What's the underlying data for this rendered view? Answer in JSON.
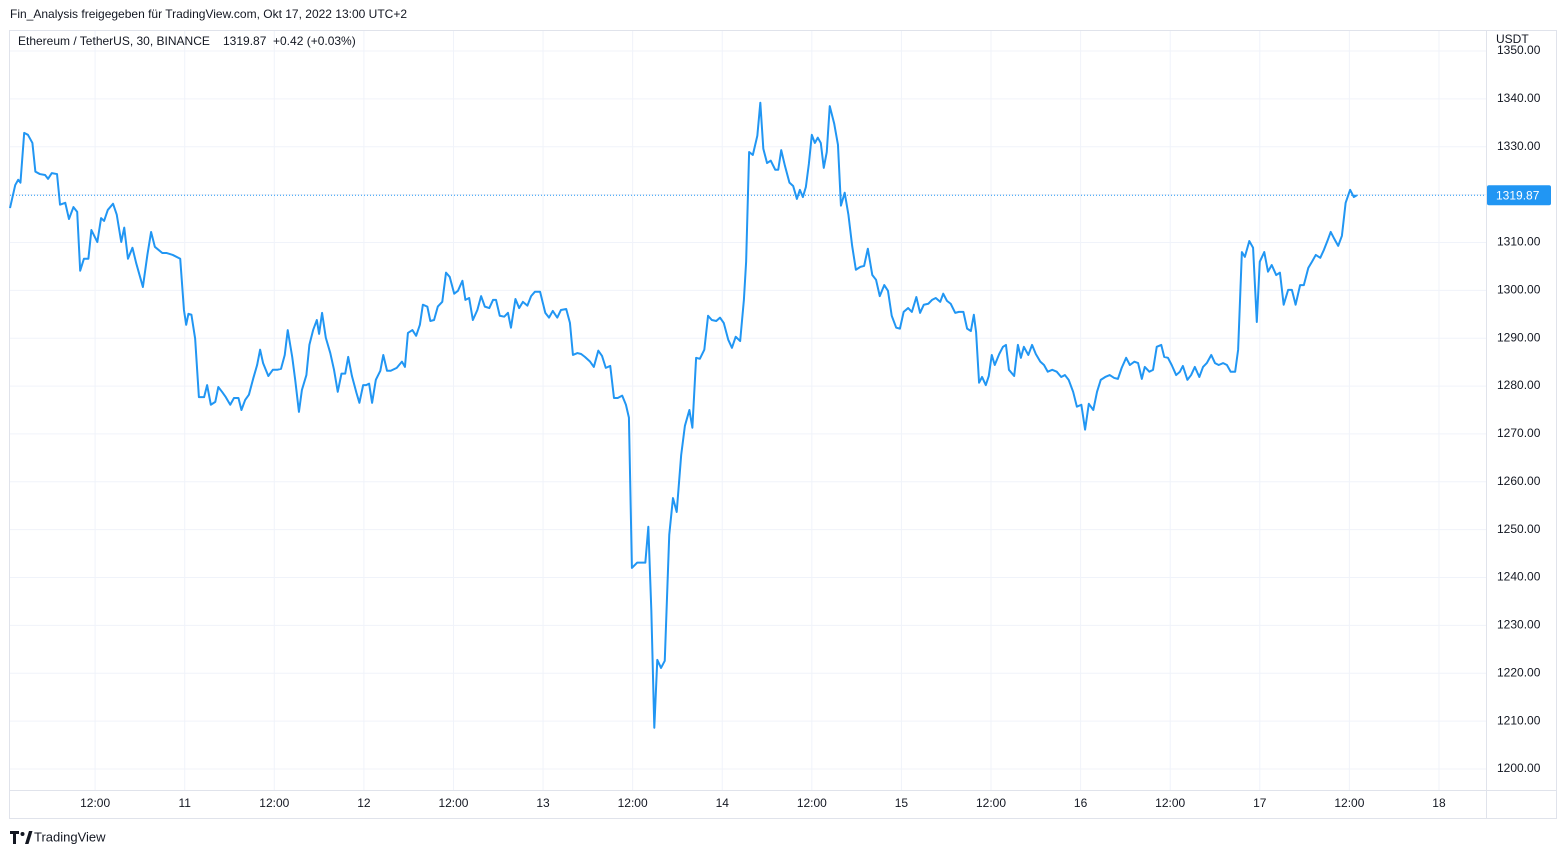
{
  "header": {
    "share_note": "Fin_Analysis freigegeben für TradingView.com, Okt 17, 2022 13:00 UTC+2"
  },
  "footer": {
    "brand": "TradingView"
  },
  "chart_data": {
    "type": "line",
    "title": "Ethereum / TetherUS, 30, BINANCE",
    "last_value": 1319.87,
    "change": "+0.42 (+0.03%)",
    "y_unit": "USDT",
    "color": "#2196f3",
    "grid": true,
    "xlim": [
      0.6,
      198.3
    ],
    "xticks": [
      {
        "value": 12,
        "label": "12:00"
      },
      {
        "value": 24,
        "label": "11"
      },
      {
        "value": 36,
        "label": "12:00"
      },
      {
        "value": 48,
        "label": "12"
      },
      {
        "value": 60,
        "label": "12:00"
      },
      {
        "value": 72,
        "label": "13"
      },
      {
        "value": 84,
        "label": "12:00"
      },
      {
        "value": 96,
        "label": "14"
      },
      {
        "value": 108,
        "label": "12:00"
      },
      {
        "value": 120,
        "label": "15"
      },
      {
        "value": 132,
        "label": "12:00"
      },
      {
        "value": 144,
        "label": "16"
      },
      {
        "value": 156,
        "label": "12:00"
      },
      {
        "value": 168,
        "label": "17"
      },
      {
        "value": 180,
        "label": "12:00"
      },
      {
        "value": 192,
        "label": "18"
      }
    ],
    "ylim": [
      1195.6,
      1354.4
    ],
    "yticks": [
      {
        "value": 1200,
        "label": "1200.00"
      },
      {
        "value": 1210,
        "label": "1210.00"
      },
      {
        "value": 1220,
        "label": "1220.00"
      },
      {
        "value": 1230,
        "label": "1230.00"
      },
      {
        "value": 1240,
        "label": "1240.00"
      },
      {
        "value": 1250,
        "label": "1250.00"
      },
      {
        "value": 1260,
        "label": "1260.00"
      },
      {
        "value": 1270,
        "label": "1270.00"
      },
      {
        "value": 1280,
        "label": "1280.00"
      },
      {
        "value": 1290,
        "label": "1290.00"
      },
      {
        "value": 1300,
        "label": "1300.00"
      },
      {
        "value": 1310,
        "label": "1310.00"
      },
      {
        "value": 1320,
        "label": "1320.00"
      },
      {
        "value": 1330,
        "label": "1330.00"
      },
      {
        "value": 1340,
        "label": "1340.00"
      },
      {
        "value": 1350,
        "label": "1350.00"
      }
    ],
    "x": [
      0.6,
      1.3,
      1.7,
      2.0,
      2.5,
      3.0,
      3.6,
      4.0,
      4.6,
      5.3,
      5.7,
      6.2,
      6.9,
      7.3,
      8.0,
      8.5,
      9.1,
      9.6,
      10.0,
      10.5,
      11.1,
      11.5,
      12.3,
      12.8,
      13.2,
      13.7,
      14.4,
      14.9,
      15.5,
      15.9,
      16.4,
      17.0,
      17.5,
      18.4,
      19.0,
      19.5,
      20.0,
      21.0,
      21.6,
      22.4,
      23.4,
      23.9,
      24.2,
      24.5,
      24.9,
      25.4,
      25.9,
      26.6,
      27.0,
      27.5,
      28.1,
      28.5,
      29.0,
      29.5,
      30.1,
      30.6,
      31.2,
      31.6,
      32.1,
      32.6,
      33.2,
      33.7,
      34.1,
      34.5,
      35.2,
      35.8,
      36.4,
      36.9,
      37.4,
      37.8,
      38.4,
      38.8,
      39.3,
      39.7,
      40.3,
      40.7,
      41.2,
      41.7,
      42.0,
      42.4,
      42.9,
      43.5,
      44.0,
      44.5,
      45.0,
      45.5,
      45.9,
      46.4,
      47.0,
      47.4,
      47.9,
      48.3,
      48.7,
      49.1,
      49.6,
      50.2,
      50.6,
      51.1,
      51.6,
      52.4,
      53.1,
      53.5,
      53.9,
      54.5,
      55.0,
      55.5,
      55.9,
      56.5,
      56.9,
      57.4,
      57.9,
      58.5,
      59.0,
      59.5,
      60.1,
      60.6,
      61.2,
      61.6,
      62.1,
      62.6,
      63.2,
      63.7,
      64.2,
      64.8,
      65.3,
      65.7,
      66.2,
      66.8,
      67.3,
      67.7,
      68.3,
      68.8,
      69.3,
      69.9,
      70.4,
      70.9,
      71.6,
      72.3,
      72.8,
      73.3,
      73.9,
      74.4,
      75.1,
      75.6,
      76.0,
      76.6,
      77.1,
      77.6,
      78.3,
      78.8,
      79.4,
      79.9,
      80.4,
      81.0,
      81.5,
      82.0,
      82.6,
      83.1,
      83.5,
      83.9,
      84.6,
      85.1,
      85.7,
      86.1,
      86.5,
      86.9,
      87.3,
      87.8,
      88.3,
      88.9,
      89.4,
      89.9,
      90.5,
      91.0,
      91.6,
      92.0,
      92.5,
      93.0,
      93.6,
      94.1,
      94.6,
      95.2,
      95.7,
      96.2,
      96.8,
      97.3,
      97.8,
      98.4,
      98.9,
      99.2,
      99.6,
      100.1,
      100.7,
      101.1,
      101.5,
      102.0,
      102.5,
      103.1,
      103.5,
      103.9,
      104.4,
      105.0,
      105.5,
      106.0,
      106.4,
      106.8,
      107.2,
      107.6,
      108.0,
      108.4,
      108.8,
      109.2,
      109.6,
      110.0,
      110.4,
      111.0,
      111.5,
      111.9,
      112.4,
      112.9,
      113.4,
      113.9,
      114.5,
      115.0,
      115.5,
      116.1,
      116.6,
      117.1,
      117.7,
      118.2,
      118.7,
      119.3,
      119.8,
      120.3,
      120.9,
      121.4,
      122.0,
      122.5,
      123.0,
      123.6,
      124.1,
      124.6,
      125.2,
      125.6,
      126.1,
      126.6,
      127.2,
      127.7,
      128.3,
      128.8,
      129.3,
      129.7,
      130.0,
      130.4,
      130.8,
      131.3,
      131.7,
      132.1,
      132.5,
      133.1,
      133.6,
      134.0,
      134.4,
      135.1,
      135.6,
      136.0,
      136.4,
      137.0,
      137.5,
      138.0,
      138.6,
      139.1,
      139.6,
      140.2,
      140.8,
      141.4,
      141.9,
      142.4,
      143.0,
      143.5,
      144.1,
      144.6,
      145.1,
      145.7,
      146.2,
      146.7,
      147.3,
      147.9,
      148.5,
      149.0,
      149.5,
      150.1,
      150.6,
      151.2,
      151.7,
      152.2,
      152.6,
      153.2,
      153.7,
      154.2,
      154.8,
      155.2,
      155.7,
      156.2,
      156.8,
      157.3,
      157.7,
      158.3,
      158.8,
      159.3,
      159.9,
      160.4,
      160.9,
      161.5,
      162.0,
      162.5,
      163.1,
      163.6,
      164.1,
      164.7,
      165.1,
      165.6,
      166.0,
      166.6,
      167.1,
      167.6,
      168.0,
      168.6,
      169.1,
      169.6,
      170.2,
      170.7,
      171.2,
      171.8,
      172.3,
      172.8,
      173.4,
      173.9,
      174.5,
      175.0,
      175.5,
      176.1,
      176.6,
      177.1,
      177.5,
      177.9,
      178.5,
      179.0,
      179.5,
      180.1,
      180.6,
      181.0
    ],
    "values": [
      1317.2,
      1322.0,
      1323.1,
      1322.5,
      1332.9,
      1332.5,
      1330.8,
      1324.8,
      1324.3,
      1324.1,
      1323.3,
      1324.5,
      1324.3,
      1317.9,
      1318.3,
      1314.9,
      1317.4,
      1316.4,
      1304.1,
      1306.6,
      1306.6,
      1312.6,
      1310.1,
      1315.1,
      1314.5,
      1316.8,
      1318.1,
      1315.8,
      1310.1,
      1313.1,
      1306.6,
      1308.9,
      1305.7,
      1300.7,
      1307.4,
      1312.2,
      1309.1,
      1307.8,
      1307.8,
      1307.4,
      1306.6,
      1295.9,
      1292.8,
      1295.1,
      1294.9,
      1289.9,
      1277.7,
      1277.7,
      1280.2,
      1276.1,
      1276.7,
      1279.8,
      1278.8,
      1277.7,
      1276.1,
      1277.5,
      1277.5,
      1275.0,
      1277.1,
      1278.2,
      1281.7,
      1284.4,
      1287.6,
      1284.8,
      1282.1,
      1283.4,
      1283.4,
      1283.6,
      1286.5,
      1291.7,
      1286.1,
      1281.3,
      1274.6,
      1279.2,
      1282.3,
      1288.6,
      1291.7,
      1293.8,
      1290.9,
      1295.3,
      1290.1,
      1286.9,
      1283.4,
      1278.8,
      1282.6,
      1282.6,
      1286.1,
      1282.1,
      1278.6,
      1276.5,
      1280.2,
      1280.2,
      1280.5,
      1276.5,
      1281.3,
      1283.2,
      1286.5,
      1283.2,
      1283.2,
      1283.8,
      1285.1,
      1284.0,
      1291.1,
      1291.7,
      1290.5,
      1292.8,
      1297.0,
      1296.6,
      1293.6,
      1293.8,
      1296.6,
      1297.6,
      1303.7,
      1302.8,
      1299.3,
      1299.9,
      1302.0,
      1298.0,
      1298.4,
      1293.8,
      1295.9,
      1298.8,
      1296.6,
      1296.3,
      1298.0,
      1298.0,
      1294.7,
      1294.5,
      1295.3,
      1292.2,
      1298.2,
      1296.3,
      1297.6,
      1296.8,
      1298.8,
      1299.7,
      1299.7,
      1295.3,
      1294.3,
      1295.7,
      1294.3,
      1295.9,
      1296.1,
      1293.2,
      1286.5,
      1286.9,
      1286.7,
      1286.1,
      1285.1,
      1284.0,
      1287.4,
      1286.3,
      1283.8,
      1284.2,
      1277.5,
      1277.5,
      1278.0,
      1276.1,
      1273.4,
      1242.0,
      1243.1,
      1243.1,
      1243.1,
      1250.6,
      1233.2,
      1208.6,
      1222.8,
      1221.1,
      1222.6,
      1248.9,
      1256.6,
      1253.7,
      1265.6,
      1271.7,
      1275.0,
      1271.3,
      1285.9,
      1285.7,
      1287.6,
      1294.7,
      1293.8,
      1293.6,
      1294.3,
      1293.2,
      1289.7,
      1288.0,
      1290.3,
      1289.4,
      1298.0,
      1306.0,
      1328.9,
      1328.3,
      1332.3,
      1339.2,
      1329.6,
      1326.6,
      1327.1,
      1325.2,
      1325.2,
      1329.3,
      1326.0,
      1322.5,
      1321.8,
      1319.1,
      1321.0,
      1319.5,
      1321.6,
      1326.4,
      1332.5,
      1330.8,
      1331.9,
      1330.8,
      1325.6,
      1328.9,
      1338.5,
      1334.8,
      1330.4,
      1317.7,
      1320.4,
      1315.8,
      1309.3,
      1304.3,
      1304.9,
      1305.1,
      1308.7,
      1303.2,
      1302.2,
      1298.8,
      1301.1,
      1299.9,
      1294.7,
      1292.2,
      1292.0,
      1295.5,
      1296.3,
      1295.5,
      1298.6,
      1295.3,
      1297.0,
      1297.2,
      1298.0,
      1298.4,
      1297.6,
      1299.3,
      1297.8,
      1297.2,
      1295.3,
      1295.5,
      1295.5,
      1292.0,
      1291.5,
      1294.9,
      1291.3,
      1280.7,
      1281.9,
      1280.2,
      1282.1,
      1286.5,
      1284.4,
      1286.7,
      1288.2,
      1288.6,
      1283.4,
      1282.1,
      1288.6,
      1285.9,
      1288.2,
      1286.5,
      1288.6,
      1286.7,
      1285.1,
      1284.4,
      1283.0,
      1283.4,
      1283.0,
      1281.9,
      1282.3,
      1281.3,
      1278.8,
      1275.7,
      1276.1,
      1270.9,
      1276.3,
      1275.0,
      1278.8,
      1281.3,
      1281.9,
      1282.3,
      1281.7,
      1281.5,
      1283.8,
      1285.9,
      1284.4,
      1285.1,
      1284.8,
      1281.5,
      1284.0,
      1283.0,
      1283.4,
      1288.2,
      1288.6,
      1286.1,
      1285.9,
      1284.4,
      1282.3,
      1283.0,
      1284.2,
      1281.3,
      1282.3,
      1284.0,
      1281.9,
      1284.0,
      1284.8,
      1286.5,
      1284.8,
      1284.4,
      1284.8,
      1284.4,
      1283.0,
      1283.0,
      1287.6,
      1308.0,
      1307.0,
      1310.3,
      1308.9,
      1293.4,
      1306.0,
      1308.0,
      1303.9,
      1305.3,
      1303.2,
      1303.7,
      1297.0,
      1300.1,
      1300.1,
      1297.0,
      1301.1,
      1301.1,
      1304.7,
      1306.0,
      1307.4,
      1306.8,
      1308.5,
      1310.5,
      1312.2,
      1311.0,
      1309.3,
      1311.4,
      1318.3,
      1321.0,
      1319.5,
      1319.87
    ]
  }
}
